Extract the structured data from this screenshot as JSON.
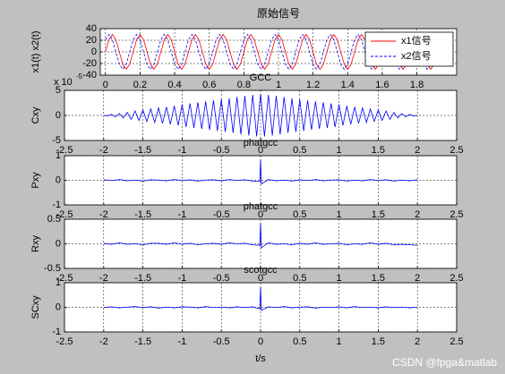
{
  "chart_data": [
    {
      "type": "line",
      "title": "原始信号",
      "ylabel": "x1(t) x2(t)",
      "legend": "northeast",
      "grid": true,
      "xlim": [
        -0.03,
        2.03
      ],
      "xticks": [
        0,
        0.2,
        0.4,
        0.6,
        0.8,
        1,
        1.2,
        1.4,
        1.6,
        1.8
      ],
      "ylim": [
        -40,
        40
      ],
      "yticks": [
        -40,
        -20,
        0,
        20,
        40
      ],
      "x": [
        0,
        0.02,
        0.04,
        0.06,
        0.08,
        0.1,
        0.12,
        0.14,
        0.16,
        0.18,
        0.2,
        0.22,
        0.24,
        0.26,
        0.28,
        0.3,
        0.32,
        0.34,
        0.36,
        0.38,
        0.4,
        0.42,
        0.44,
        0.46,
        0.48,
        0.5,
        0.52,
        0.54,
        0.56,
        0.58,
        0.6,
        0.62,
        0.64,
        0.66,
        0.68,
        0.7,
        0.72,
        0.74,
        0.76,
        0.78,
        0.8,
        0.82,
        0.84,
        0.86,
        0.88,
        0.9,
        0.92,
        0.94,
        0.96,
        0.98,
        1,
        1.02,
        1.04,
        1.06,
        1.08,
        1.1,
        1.12,
        1.14,
        1.16,
        1.18,
        1.2,
        1.22,
        1.24,
        1.26,
        1.28,
        1.3,
        1.32,
        1.34,
        1.36,
        1.38,
        1.4,
        1.42,
        1.44,
        1.46,
        1.48,
        1.5,
        1.52,
        1.54,
        1.56,
        1.58,
        1.6,
        1.62,
        1.64,
        1.66,
        1.68,
        1.7,
        1.72,
        1.74,
        1.76,
        1.78,
        1.8,
        1.82,
        1.84,
        1.86,
        1.88,
        1.9,
        1.92,
        1.94,
        1.96,
        1.98,
        2
      ],
      "series": [
        {
          "name": "x1信号",
          "color": "#ff0000",
          "dash": false,
          "values": [
            0,
            21,
            30,
            21,
            0,
            -21,
            -30,
            -21,
            0,
            21,
            30,
            21,
            0,
            -21,
            -30,
            -21,
            0,
            21,
            30,
            21,
            0,
            -21,
            -30,
            -21,
            0,
            21,
            30,
            21,
            0,
            -21,
            -30,
            -21,
            0,
            21,
            30,
            21,
            0,
            -21,
            -30,
            -21,
            0,
            21,
            30,
            21,
            0,
            -21,
            -30,
            -21,
            0,
            21,
            30,
            21,
            0,
            -21,
            -30,
            -21,
            0,
            21,
            30,
            21,
            0,
            -21,
            -30,
            -21,
            0,
            21,
            30,
            21,
            0,
            -21,
            -30,
            -21,
            0,
            21,
            30,
            21,
            0,
            -21,
            -30,
            -21,
            0,
            21,
            30,
            21,
            0,
            -21,
            -30,
            -21,
            0,
            21,
            30,
            21,
            0,
            -21,
            -30,
            -21,
            0,
            21,
            30,
            21,
            0
          ]
        },
        {
          "name": "x2信号",
          "color": "#0000ff",
          "dash": true,
          "values": [
            21,
            30,
            21,
            0,
            -21,
            -30,
            -21,
            0,
            21,
            30,
            21,
            0,
            -21,
            -30,
            -21,
            0,
            21,
            30,
            21,
            0,
            -21,
            -30,
            -21,
            0,
            21,
            30,
            21,
            0,
            -21,
            -30,
            -21,
            0,
            21,
            30,
            21,
            0,
            -21,
            -30,
            -21,
            0,
            21,
            30,
            21,
            0,
            -21,
            -30,
            -21,
            0,
            21,
            30,
            21,
            0,
            -21,
            -30,
            -21,
            0,
            21,
            30,
            21,
            0,
            -21,
            -30,
            -21,
            0,
            21,
            30,
            21,
            0,
            -21,
            -30,
            -21,
            0,
            21,
            30,
            21,
            0,
            -21,
            -30,
            -21,
            0,
            21,
            30,
            21,
            0,
            -21,
            -30,
            -21,
            0,
            21,
            30,
            21,
            0,
            -21,
            -30,
            -21,
            0,
            21,
            30,
            21,
            0,
            -21
          ]
        }
      ]
    },
    {
      "type": "line",
      "title": "GCC",
      "ylabel": "Cxy",
      "exponent": {
        "base": "x 10",
        "power": "-5"
      },
      "grid": true,
      "xlim": [
        -2.5,
        2.5
      ],
      "xticks": [
        -2.5,
        -2,
        -1.5,
        -1,
        -0.5,
        0,
        0.5,
        1,
        1.5,
        2,
        2.5
      ],
      "ylim": [
        -5,
        5
      ],
      "yticks": [
        -5,
        0,
        5
      ],
      "x": [
        -2,
        -1.95,
        -1.9,
        -1.85,
        -1.8,
        -1.75,
        -1.7,
        -1.65,
        -1.6,
        -1.55,
        -1.5,
        -1.45,
        -1.4,
        -1.35,
        -1.3,
        -1.25,
        -1.2,
        -1.15,
        -1.1,
        -1.05,
        -1,
        -0.95,
        -0.9,
        -0.85,
        -0.8,
        -0.75,
        -0.7,
        -0.65,
        -0.6,
        -0.55,
        -0.5,
        -0.45,
        -0.4,
        -0.35,
        -0.3,
        -0.25,
        -0.2,
        -0.15,
        -0.1,
        -0.05,
        0,
        0.05,
        0.1,
        0.15,
        0.2,
        0.25,
        0.3,
        0.35,
        0.4,
        0.45,
        0.5,
        0.55,
        0.6,
        0.65,
        0.7,
        0.75,
        0.8,
        0.85,
        0.9,
        0.95,
        1,
        1.05,
        1.1,
        1.15,
        1.2,
        1.25,
        1.3,
        1.35,
        1.4,
        1.45,
        1.5,
        1.55,
        1.6,
        1.65,
        1.7,
        1.75,
        1.8,
        1.85,
        1.9,
        1.95,
        2
      ],
      "series": [
        {
          "name": "Cxy",
          "color": "#0000ff",
          "dash": false,
          "values": [
            0,
            -0.1,
            0.2,
            -0.3,
            0.4,
            -0.5,
            0.6,
            -0.8,
            0.9,
            -1.0,
            1.1,
            -1.2,
            1.3,
            -1.4,
            1.5,
            -1.6,
            1.7,
            -1.8,
            1.9,
            -2.0,
            2.2,
            -2.3,
            2.4,
            -2.5,
            2.6,
            -2.7,
            2.8,
            -2.9,
            3.0,
            -3.1,
            3.2,
            -3.3,
            3.4,
            -3.5,
            3.7,
            -3.8,
            3.9,
            -4.0,
            4.1,
            -4.2,
            4.3,
            -4.2,
            4.1,
            -4.0,
            3.9,
            -3.8,
            3.7,
            -3.5,
            3.4,
            -3.3,
            3.2,
            -3.1,
            3.0,
            -2.9,
            2.8,
            -2.7,
            2.6,
            -2.5,
            2.4,
            -2.3,
            2.2,
            -2.0,
            1.9,
            -1.8,
            1.7,
            -1.6,
            1.5,
            -1.4,
            1.3,
            -1.2,
            1.1,
            -1.0,
            0.9,
            -0.8,
            0.6,
            -0.5,
            0.4,
            -0.3,
            0.2,
            -0.1,
            0
          ]
        }
      ]
    },
    {
      "type": "line",
      "title": "phatgcc",
      "ylabel": "Pxy",
      "grid": true,
      "xlim": [
        -2.5,
        2.5
      ],
      "xticks": [
        -2.5,
        -2,
        -1.5,
        -1,
        -0.5,
        0,
        0.5,
        1,
        1.5,
        2,
        2.5
      ],
      "ylim": [
        -1,
        1
      ],
      "yticks": [
        -1,
        0,
        1
      ],
      "x": [
        -2,
        -1.9,
        -1.8,
        -1.7,
        -1.6,
        -1.5,
        -1.4,
        -1.3,
        -1.2,
        -1.1,
        -1,
        -0.9,
        -0.8,
        -0.7,
        -0.6,
        -0.5,
        -0.4,
        -0.3,
        -0.2,
        -0.1,
        -0.01,
        0,
        0.01,
        0.1,
        0.2,
        0.3,
        0.4,
        0.5,
        0.6,
        0.7,
        0.8,
        0.9,
        1,
        1.1,
        1.2,
        1.3,
        1.4,
        1.5,
        1.6,
        1.7,
        1.8,
        1.9,
        2
      ],
      "series": [
        {
          "name": "Pxy",
          "color": "#0000ff",
          "dash": false,
          "values": [
            0.02,
            -0.01,
            0.03,
            -0.02,
            0.01,
            -0.03,
            0.02,
            0.01,
            -0.02,
            0.03,
            -0.01,
            0.02,
            -0.03,
            0.01,
            0.02,
            -0.02,
            0.03,
            -0.01,
            0.02,
            -0.03,
            -0.05,
            0.85,
            -0.15,
            0.03,
            -0.02,
            0.01,
            -0.03,
            0.02,
            -0.01,
            0.03,
            -0.02,
            0.01,
            0.02,
            -0.03,
            0.01,
            -0.02,
            0.03,
            -0.01,
            0.02,
            -0.03,
            0.01,
            -0.02,
            0.02
          ]
        }
      ]
    },
    {
      "type": "line",
      "title": "phatgcc",
      "ylabel": "Rxy",
      "grid": true,
      "xlim": [
        -2.5,
        2.5
      ],
      "xticks": [
        -2.5,
        -2,
        -1.5,
        -1,
        -0.5,
        0,
        0.5,
        1,
        1.5,
        2,
        2.5
      ],
      "ylim": [
        -0.5,
        0.5
      ],
      "yticks": [
        -0.5,
        0,
        0.5
      ],
      "x": [
        -2,
        -1.9,
        -1.8,
        -1.7,
        -1.6,
        -1.5,
        -1.4,
        -1.3,
        -1.2,
        -1.1,
        -1,
        -0.9,
        -0.8,
        -0.7,
        -0.6,
        -0.5,
        -0.4,
        -0.3,
        -0.2,
        -0.1,
        -0.01,
        0,
        0.01,
        0.1,
        0.2,
        0.3,
        0.4,
        0.5,
        0.6,
        0.7,
        0.8,
        0.9,
        1,
        1.1,
        1.2,
        1.3,
        1.4,
        1.5,
        1.6,
        1.7,
        1.8,
        1.9,
        2
      ],
      "series": [
        {
          "name": "Rxy",
          "color": "#0000ff",
          "dash": false,
          "values": [
            0.01,
            -0.01,
            0.02,
            -0.01,
            0,
            -0.02,
            0.01,
            0.01,
            -0.01,
            0.02,
            -0.01,
            0.01,
            -0.02,
            0,
            0.01,
            -0.01,
            0.02,
            0,
            0.01,
            -0.02,
            -0.03,
            0.42,
            -0.08,
            0.02,
            -0.01,
            0,
            -0.02,
            0.01,
            -0.01,
            0.02,
            -0.01,
            0,
            0.01,
            -0.02,
            0,
            -0.01,
            0.02,
            -0.01,
            0.01,
            -0.02,
            -0.01,
            -0.02,
            -0.03
          ]
        }
      ]
    },
    {
      "type": "line",
      "title": "scotgcc",
      "ylabel": "SCxy",
      "xlabel": "t/s",
      "grid": true,
      "xlim": [
        -2.5,
        2.5
      ],
      "xticks": [
        -2.5,
        -2,
        -1.5,
        -1,
        -0.5,
        0,
        0.5,
        1,
        1.5,
        2,
        2.5
      ],
      "ylim": [
        -1,
        1
      ],
      "yticks": [
        -1,
        0,
        1
      ],
      "x": [
        -2,
        -1.9,
        -1.8,
        -1.7,
        -1.6,
        -1.5,
        -1.4,
        -1.3,
        -1.2,
        -1.1,
        -1,
        -0.9,
        -0.8,
        -0.7,
        -0.6,
        -0.5,
        -0.4,
        -0.3,
        -0.2,
        -0.1,
        -0.01,
        0,
        0.01,
        0.1,
        0.2,
        0.3,
        0.4,
        0.5,
        0.6,
        0.7,
        0.8,
        0.9,
        1,
        1.1,
        1.2,
        1.3,
        1.4,
        1.5,
        1.6,
        1.7,
        1.8,
        1.9,
        2
      ],
      "series": [
        {
          "name": "SCxy",
          "color": "#0000ff",
          "dash": false,
          "values": [
            -0.01,
            0.02,
            -0.02,
            0.01,
            0.03,
            -0.01,
            0.02,
            -0.03,
            0.01,
            -0.02,
            0.02,
            0.01,
            -0.02,
            0.03,
            -0.01,
            0.01,
            -0.02,
            0.02,
            -0.01,
            0.02,
            -0.06,
            0.82,
            -0.12,
            0.02,
            -0.01,
            0.03,
            -0.02,
            0.01,
            0.02,
            -0.03,
            0.01,
            -0.01,
            0.02,
            -0.02,
            0.03,
            -0.01,
            0.01,
            -0.02,
            0.02,
            -0.01,
            0.01,
            -0.02,
            0.01
          ]
        }
      ]
    }
  ],
  "watermark": "CSDN @fpga&matlab"
}
